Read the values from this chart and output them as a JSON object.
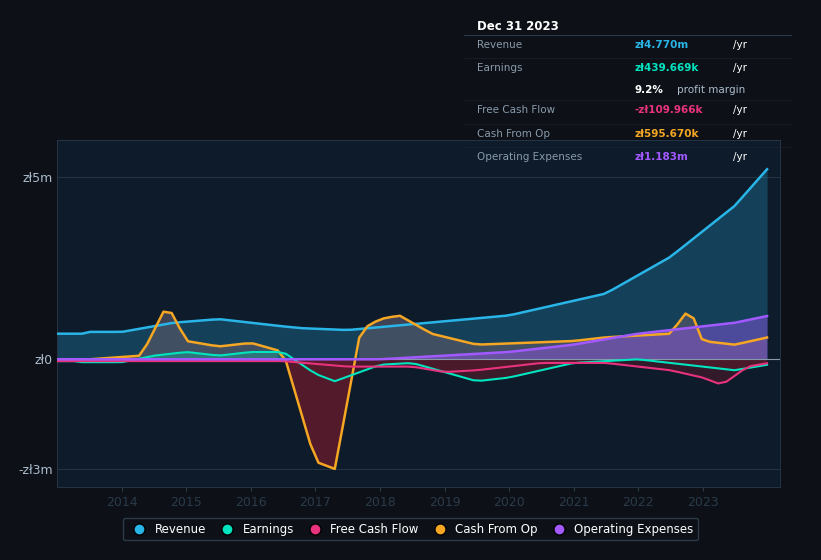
{
  "bg_color": "#0d1117",
  "plot_bg_color": "#0d1b2a",
  "grid_color": "#2a3a4a",
  "zero_line_color": "#8899aa",
  "ylim": [
    -3500000,
    6000000
  ],
  "xtick_labels": [
    "2014",
    "2015",
    "2016",
    "2017",
    "2018",
    "2019",
    "2020",
    "2021",
    "2022",
    "2023"
  ],
  "series_colors": {
    "revenue": "#29b5e8",
    "earnings": "#00e5c0",
    "free_cash_flow": "#e8327d",
    "cash_from_op": "#f5a623",
    "op_expenses": "#a259ff"
  },
  "info_box": {
    "date": "Dec 31 2023",
    "revenue_val": "zł4.770m",
    "earnings_val": "zł439.669k",
    "margin": "9.2%",
    "fcf_val": "-zł109.966k",
    "cfop_val": "zł595.670k",
    "opex_val": "zł1.183m"
  }
}
